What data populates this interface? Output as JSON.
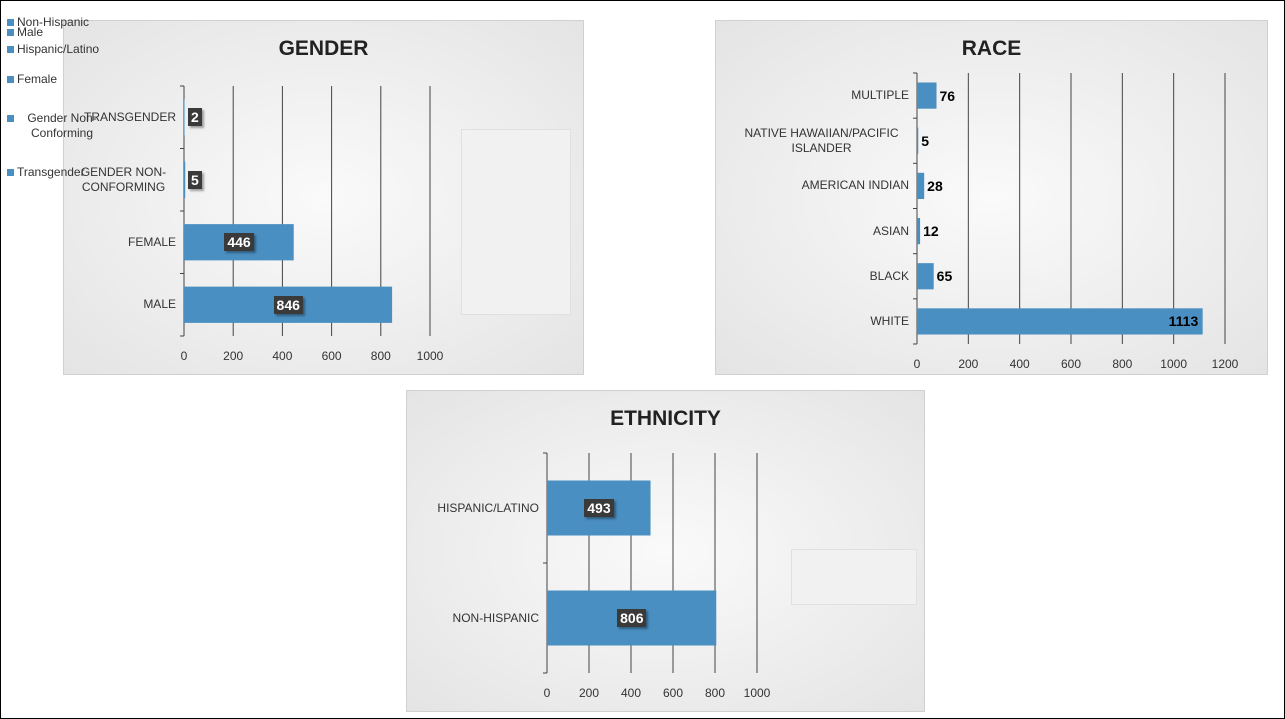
{
  "chart_data": [
    {
      "type": "bar",
      "orientation": "horizontal",
      "title": "GENDER",
      "categories": [
        "MALE",
        "FEMALE",
        "GENDER NON-CONFORMING",
        "TRANSGENDER"
      ],
      "values": [
        846,
        446,
        5,
        2
      ],
      "color": "#4a8fc1",
      "xlim": [
        0,
        1000
      ],
      "xticks": [
        0,
        200,
        400,
        600,
        800,
        1000
      ],
      "grid": true,
      "legend": [
        "Male",
        "Female",
        "Gender Non-Conforming",
        "Transgender"
      ],
      "legend_position": "right"
    },
    {
      "type": "bar",
      "orientation": "horizontal",
      "title": "RACE",
      "categories": [
        "WHITE",
        "BLACK",
        "ASIAN",
        "AMERICAN INDIAN",
        "NATIVE HAWAIIAN/PACIFIC ISLANDER",
        "MULTIPLE"
      ],
      "values": [
        1113,
        65,
        12,
        28,
        5,
        76
      ],
      "color": "#4a8fc1",
      "xlim": [
        0,
        1200
      ],
      "xticks": [
        0,
        200,
        400,
        600,
        800,
        1000,
        1200
      ],
      "grid": true
    },
    {
      "type": "bar",
      "orientation": "horizontal",
      "title": "ETHNICITY",
      "categories": [
        "NON-HISPANIC",
        "HISPANIC/LATINO"
      ],
      "values": [
        806,
        493
      ],
      "color": "#4a8fc1",
      "xlim": [
        0,
        1000
      ],
      "xticks": [
        0,
        200,
        400,
        600,
        800,
        1000
      ],
      "grid": true,
      "legend": [
        "Non-Hispanic",
        "Hispanic/Latino"
      ],
      "legend_position": "right"
    }
  ]
}
